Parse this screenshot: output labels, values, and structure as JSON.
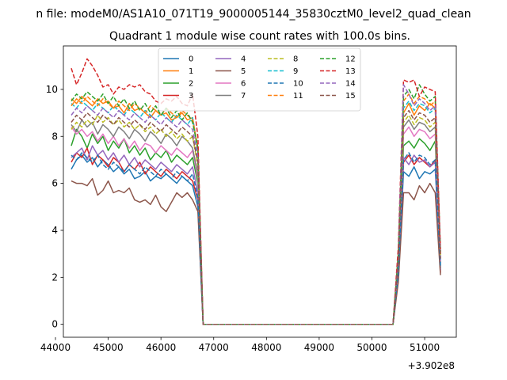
{
  "suptitle": "n file: modeM0/AS1A10_071T19_9000005144_35830cztM0_level2_quad_clean",
  "chart_data": {
    "type": "line",
    "title": "Quadrant 1 module wise count rates with 100.0s bins.",
    "xlabel": "",
    "ylabel": "",
    "x_offset_label": "+3.902e8",
    "xlim": [
      44150,
      51600
    ],
    "ylim": [
      -0.55,
      11.85
    ],
    "xticks": [
      44000,
      45000,
      46000,
      47000,
      48000,
      49000,
      50000,
      51000
    ],
    "yticks": [
      0,
      2,
      4,
      6,
      8,
      10
    ],
    "legend_loc": "upper center",
    "x": [
      44300,
      44400,
      44500,
      44600,
      44700,
      44800,
      44900,
      45000,
      45100,
      45200,
      45300,
      45400,
      45500,
      45600,
      45700,
      45800,
      45900,
      46000,
      46100,
      46200,
      46300,
      46400,
      46500,
      46600,
      46700,
      46800,
      46900,
      47000,
      47100,
      47200,
      47300,
      47400,
      47500,
      47600,
      47700,
      47800,
      47900,
      48000,
      48100,
      48200,
      48300,
      48400,
      48500,
      48600,
      48700,
      48800,
      48900,
      49000,
      49100,
      49200,
      49300,
      49400,
      49500,
      49600,
      49700,
      49800,
      49900,
      50000,
      50100,
      50200,
      50300,
      50400,
      50500,
      50600,
      50700,
      50800,
      50900,
      51000,
      51100,
      51200,
      51300
    ],
    "series": [
      {
        "name": "0",
        "color": "#1f77b4",
        "dash": "solid",
        "values": [
          6.6,
          7.0,
          7.2,
          6.9,
          7.1,
          6.7,
          7.0,
          6.8,
          6.5,
          6.7,
          6.4,
          6.6,
          6.2,
          6.3,
          6.5,
          6.1,
          6.3,
          6.2,
          6.4,
          6.2,
          6.0,
          6.3,
          6.1,
          5.9,
          5.0,
          0,
          0,
          0,
          0,
          0,
          0,
          0,
          0,
          0,
          0,
          0,
          0,
          0,
          0,
          0,
          0,
          0,
          0,
          0,
          0,
          0,
          0,
          0,
          0,
          0,
          0,
          0,
          0,
          0,
          0,
          0,
          0,
          0,
          0,
          0,
          0,
          0,
          2.0,
          6.5,
          6.3,
          6.7,
          6.2,
          6.5,
          6.4,
          6.6,
          2.6
        ]
      },
      {
        "name": "1",
        "color": "#ff7f0e",
        "dash": "solid",
        "values": [
          9.6,
          9.4,
          9.7,
          9.5,
          9.3,
          9.6,
          9.4,
          9.5,
          9.2,
          9.3,
          9.0,
          9.4,
          9.1,
          9.2,
          9.0,
          8.8,
          9.1,
          8.9,
          9.0,
          8.7,
          8.8,
          9.0,
          8.7,
          8.8,
          7.5,
          0,
          0,
          0,
          0,
          0,
          0,
          0,
          0,
          0,
          0,
          0,
          0,
          0,
          0,
          0,
          0,
          0,
          0,
          0,
          0,
          0,
          0,
          0,
          0,
          0,
          0,
          0,
          0,
          0,
          0,
          0,
          0,
          0,
          0,
          0,
          0,
          0,
          2.8,
          9.0,
          9.4,
          8.9,
          9.3,
          9.1,
          9.4,
          9.2,
          3.0
        ]
      },
      {
        "name": "2",
        "color": "#2ca02c",
        "dash": "solid",
        "values": [
          7.6,
          8.3,
          8.0,
          7.5,
          8.1,
          7.7,
          8.0,
          7.4,
          7.8,
          7.5,
          7.9,
          7.3,
          7.6,
          7.2,
          7.5,
          7.0,
          7.3,
          7.1,
          7.4,
          6.9,
          7.2,
          7.0,
          6.8,
          7.1,
          6.0,
          0,
          0,
          0,
          0,
          0,
          0,
          0,
          0,
          0,
          0,
          0,
          0,
          0,
          0,
          0,
          0,
          0,
          0,
          0,
          0,
          0,
          0,
          0,
          0,
          0,
          0,
          0,
          0,
          0,
          0,
          0,
          0,
          0,
          0,
          0,
          0,
          0,
          2.3,
          7.6,
          7.8,
          7.5,
          7.9,
          7.7,
          7.4,
          7.8,
          2.4
        ]
      },
      {
        "name": "3",
        "color": "#d62728",
        "dash": "solid",
        "values": [
          6.9,
          7.3,
          7.1,
          7.5,
          6.8,
          7.2,
          7.0,
          6.7,
          7.1,
          6.9,
          6.5,
          6.8,
          6.6,
          6.9,
          6.4,
          6.7,
          6.5,
          6.3,
          6.6,
          6.4,
          6.2,
          6.5,
          6.3,
          6.1,
          5.3,
          0,
          0,
          0,
          0,
          0,
          0,
          0,
          0,
          0,
          0,
          0,
          0,
          0,
          0,
          0,
          0,
          0,
          0,
          0,
          0,
          0,
          0,
          0,
          0,
          0,
          0,
          0,
          0,
          0,
          0,
          0,
          0,
          0,
          0,
          0,
          0,
          0,
          2.1,
          6.9,
          7.2,
          6.8,
          7.1,
          6.9,
          6.7,
          7.0,
          2.2
        ]
      },
      {
        "name": "4",
        "color": "#9467bd",
        "dash": "solid",
        "values": [
          7.1,
          7.3,
          7.5,
          7.0,
          7.6,
          7.2,
          7.4,
          7.0,
          7.3,
          6.9,
          7.2,
          6.8,
          7.1,
          6.7,
          7.0,
          6.8,
          6.6,
          6.9,
          6.7,
          6.5,
          6.8,
          6.6,
          6.4,
          6.7,
          5.6,
          0,
          0,
          0,
          0,
          0,
          0,
          0,
          0,
          0,
          0,
          0,
          0,
          0,
          0,
          0,
          0,
          0,
          0,
          0,
          0,
          0,
          0,
          0,
          0,
          0,
          0,
          0,
          0,
          0,
          0,
          0,
          0,
          0,
          0,
          0,
          0,
          0,
          2.2,
          7.1,
          6.8,
          7.2,
          6.9,
          7.0,
          6.7,
          6.9,
          2.3
        ]
      },
      {
        "name": "5",
        "color": "#8c564b",
        "dash": "solid",
        "values": [
          6.1,
          6.0,
          6.0,
          5.9,
          6.2,
          5.5,
          5.7,
          6.1,
          5.6,
          5.7,
          5.6,
          5.8,
          5.3,
          5.2,
          5.3,
          5.1,
          5.5,
          5.0,
          4.8,
          5.2,
          5.6,
          5.4,
          5.6,
          5.3,
          4.8,
          0,
          0,
          0,
          0,
          0,
          0,
          0,
          0,
          0,
          0,
          0,
          0,
          0,
          0,
          0,
          0,
          0,
          0,
          0,
          0,
          0,
          0,
          0,
          0,
          0,
          0,
          0,
          0,
          0,
          0,
          0,
          0,
          0,
          0,
          0,
          0,
          0,
          1.8,
          5.6,
          5.6,
          5.3,
          5.9,
          5.6,
          6.0,
          5.6,
          2.1
        ]
      },
      {
        "name": "6",
        "color": "#e377c2",
        "dash": "solid",
        "values": [
          8.4,
          8.1,
          8.3,
          8.0,
          8.2,
          7.8,
          8.1,
          7.7,
          8.0,
          7.6,
          7.9,
          7.5,
          7.8,
          7.4,
          7.7,
          7.6,
          7.3,
          7.6,
          7.4,
          7.2,
          7.5,
          7.3,
          7.1,
          7.4,
          6.2,
          0,
          0,
          0,
          0,
          0,
          0,
          0,
          0,
          0,
          0,
          0,
          0,
          0,
          0,
          0,
          0,
          0,
          0,
          0,
          0,
          0,
          0,
          0,
          0,
          0,
          0,
          0,
          0,
          0,
          0,
          0,
          0,
          0,
          0,
          0,
          0,
          0,
          2.5,
          8.1,
          8.4,
          8.0,
          8.3,
          8.2,
          7.9,
          8.1,
          2.7
        ]
      },
      {
        "name": "7",
        "color": "#7f7f7f",
        "dash": "solid",
        "values": [
          8.5,
          8.2,
          8.7,
          8.4,
          8.6,
          8.1,
          8.5,
          8.3,
          8.0,
          8.4,
          8.2,
          7.9,
          8.3,
          8.1,
          7.8,
          8.2,
          8.0,
          7.7,
          8.1,
          7.9,
          7.6,
          8.0,
          7.8,
          7.5,
          6.4,
          0,
          0,
          0,
          0,
          0,
          0,
          0,
          0,
          0,
          0,
          0,
          0,
          0,
          0,
          0,
          0,
          0,
          0,
          0,
          0,
          0,
          0,
          0,
          0,
          0,
          0,
          0,
          0,
          0,
          0,
          0,
          0,
          0,
          0,
          0,
          0,
          0,
          2.6,
          8.4,
          8.7,
          8.3,
          8.6,
          8.5,
          8.2,
          8.4,
          2.8
        ]
      },
      {
        "name": "8",
        "color": "#bcbd22",
        "dash": "dashed",
        "values": [
          8.3,
          8.6,
          8.4,
          8.7,
          8.5,
          8.9,
          8.6,
          8.8,
          8.5,
          8.7,
          8.4,
          8.6,
          8.3,
          8.5,
          8.2,
          8.4,
          8.1,
          8.3,
          8.0,
          8.2,
          7.9,
          8.1,
          7.8,
          8.0,
          6.7,
          0,
          0,
          0,
          0,
          0,
          0,
          0,
          0,
          0,
          0,
          0,
          0,
          0,
          0,
          0,
          0,
          0,
          0,
          0,
          0,
          0,
          0,
          0,
          0,
          0,
          0,
          0,
          0,
          0,
          0,
          0,
          0,
          0,
          0,
          0,
          0,
          0,
          2.7,
          8.6,
          8.9,
          8.5,
          8.8,
          8.7,
          8.4,
          8.6,
          2.9
        ]
      },
      {
        "name": "9",
        "color": "#17becf",
        "dash": "dashed",
        "values": [
          9.4,
          9.2,
          9.5,
          9.3,
          9.1,
          9.4,
          9.2,
          9.0,
          9.3,
          9.1,
          8.9,
          9.2,
          9.0,
          8.8,
          9.1,
          8.9,
          8.7,
          9.0,
          8.8,
          8.6,
          8.9,
          8.7,
          8.5,
          8.8,
          7.3,
          0,
          0,
          0,
          0,
          0,
          0,
          0,
          0,
          0,
          0,
          0,
          0,
          0,
          0,
          0,
          0,
          0,
          0,
          0,
          0,
          0,
          0,
          0,
          0,
          0,
          0,
          0,
          0,
          0,
          0,
          0,
          0,
          0,
          0,
          0,
          0,
          0,
          2.9,
          9.2,
          9.5,
          9.1,
          9.4,
          9.3,
          9.0,
          9.2,
          3.1
        ]
      },
      {
        "name": "10",
        "color": "#1f77b4",
        "dash": "dashed",
        "values": [
          7.2,
          7.0,
          7.3,
          7.1,
          6.9,
          7.2,
          6.8,
          6.6,
          6.9,
          6.7,
          6.5,
          6.8,
          6.6,
          6.4,
          6.7,
          6.5,
          6.3,
          6.6,
          6.4,
          6.2,
          6.5,
          6.3,
          6.1,
          6.4,
          5.4,
          0,
          0,
          0,
          0,
          0,
          0,
          0,
          0,
          0,
          0,
          0,
          0,
          0,
          0,
          0,
          0,
          0,
          0,
          0,
          0,
          0,
          0,
          0,
          0,
          0,
          0,
          0,
          0,
          0,
          0,
          0,
          0,
          0,
          0,
          0,
          0,
          0,
          2.2,
          7.0,
          7.3,
          6.9,
          7.2,
          7.1,
          6.8,
          7.0,
          2.5
        ]
      },
      {
        "name": "11",
        "color": "#ff7f0e",
        "dash": "dashed",
        "values": [
          9.3,
          9.6,
          9.4,
          9.7,
          9.5,
          9.3,
          9.6,
          9.4,
          9.2,
          9.5,
          9.3,
          9.1,
          9.4,
          9.2,
          9.0,
          9.3,
          9.1,
          8.9,
          9.2,
          9.0,
          8.8,
          9.1,
          8.9,
          8.7,
          7.4,
          0,
          0,
          0,
          0,
          0,
          0,
          0,
          0,
          0,
          0,
          0,
          0,
          0,
          0,
          0,
          0,
          0,
          0,
          0,
          0,
          0,
          0,
          0,
          0,
          0,
          0,
          0,
          0,
          0,
          0,
          0,
          0,
          0,
          0,
          0,
          0,
          0,
          3.0,
          9.5,
          9.8,
          9.4,
          9.7,
          9.6,
          9.3,
          9.5,
          3.0
        ]
      },
      {
        "name": "12",
        "color": "#2ca02c",
        "dash": "dashed",
        "values": [
          9.5,
          9.8,
          9.6,
          9.9,
          9.7,
          9.5,
          9.8,
          9.4,
          9.7,
          9.3,
          9.6,
          9.2,
          9.5,
          9.1,
          9.4,
          9.0,
          9.3,
          8.9,
          9.2,
          8.8,
          9.1,
          8.7,
          9.0,
          8.6,
          7.5,
          0,
          0,
          0,
          0,
          0,
          0,
          0,
          0,
          0,
          0,
          0,
          0,
          0,
          0,
          0,
          0,
          0,
          0,
          0,
          0,
          0,
          0,
          0,
          0,
          0,
          0,
          0,
          0,
          0,
          0,
          0,
          0,
          0,
          0,
          0,
          0,
          0,
          3.0,
          9.7,
          10.0,
          9.6,
          10.2,
          9.8,
          9.5,
          9.7,
          3.1
        ]
      },
      {
        "name": "13",
        "color": "#d62728",
        "dash": "dashed",
        "values": [
          10.9,
          10.2,
          10.7,
          11.3,
          11.0,
          10.6,
          10.1,
          10.2,
          9.8,
          10.1,
          10.0,
          10.2,
          10.1,
          10.2,
          9.9,
          9.8,
          9.5,
          9.4,
          9.6,
          9.5,
          9.7,
          9.4,
          9.3,
          9.8,
          8.0,
          0,
          0,
          0,
          0,
          0,
          0,
          0,
          0,
          0,
          0,
          0,
          0,
          0,
          0,
          0,
          0,
          0,
          0,
          0,
          0,
          0,
          0,
          0,
          0,
          0,
          0,
          0,
          0,
          0,
          0,
          0,
          0,
          0,
          0,
          0,
          0,
          0,
          3.3,
          10.4,
          10.3,
          10.4,
          9.7,
          10.1,
          10.0,
          9.9,
          3.2
        ]
      },
      {
        "name": "14",
        "color": "#9467bd",
        "dash": "dashed",
        "values": [
          8.9,
          9.2,
          9.0,
          9.3,
          9.1,
          8.9,
          9.2,
          9.0,
          8.8,
          9.1,
          8.9,
          8.7,
          9.0,
          8.8,
          8.6,
          8.9,
          8.7,
          8.5,
          8.8,
          8.6,
          8.4,
          8.7,
          8.5,
          8.3,
          7.1,
          0,
          0,
          0,
          0,
          0,
          0,
          0,
          0,
          0,
          0,
          0,
          0,
          0,
          0,
          0,
          0,
          0,
          0,
          0,
          0,
          0,
          0,
          0,
          0,
          0,
          0,
          0,
          0,
          0,
          0,
          0,
          0,
          0,
          0,
          0,
          0,
          0,
          2.8,
          10.2,
          9.8,
          9.3,
          9.6,
          9.4,
          9.1,
          9.3,
          2.9
        ]
      },
      {
        "name": "15",
        "color": "#8c564b",
        "dash": "dashed",
        "values": [
          8.6,
          8.9,
          8.7,
          9.0,
          8.8,
          8.6,
          8.9,
          8.7,
          8.5,
          8.8,
          8.6,
          8.4,
          8.7,
          8.5,
          8.3,
          8.6,
          8.4,
          8.2,
          8.5,
          8.3,
          8.1,
          8.4,
          8.2,
          8.0,
          6.9,
          0,
          0,
          0,
          0,
          0,
          0,
          0,
          0,
          0,
          0,
          0,
          0,
          0,
          0,
          0,
          0,
          0,
          0,
          0,
          0,
          0,
          0,
          0,
          0,
          0,
          0,
          0,
          0,
          0,
          0,
          0,
          0,
          0,
          0,
          0,
          0,
          0,
          2.7,
          8.8,
          9.1,
          8.7,
          9.0,
          8.9,
          8.6,
          8.8,
          2.8
        ]
      }
    ]
  }
}
